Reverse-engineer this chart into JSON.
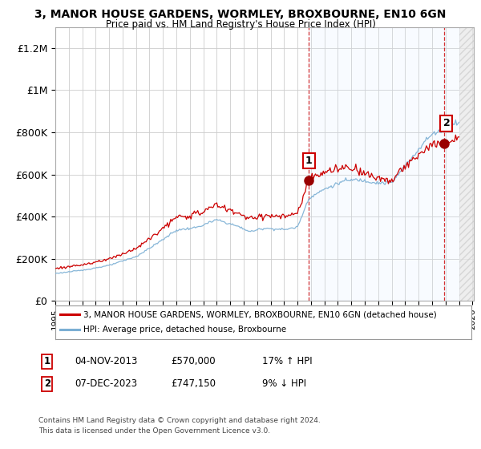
{
  "title": "3, MANOR HOUSE GARDENS, WORMLEY, BROXBOURNE, EN10 6GN",
  "subtitle": "Price paid vs. HM Land Registry's House Price Index (HPI)",
  "ylabel_ticks": [
    "£0",
    "£200K",
    "£400K",
    "£600K",
    "£800K",
    "£1M",
    "£1.2M"
  ],
  "ytick_vals": [
    0,
    200000,
    400000,
    600000,
    800000,
    1000000,
    1200000
  ],
  "ylim": [
    0,
    1300000
  ],
  "hpi_color": "#7bafd4",
  "price_color": "#cc0000",
  "sale1_date": "04-NOV-2013",
  "sale1_price": 570000,
  "sale1_year": 2013.836,
  "sale1_label": "1",
  "sale1_hpi_pct": "17% ↑ HPI",
  "sale2_date": "07-DEC-2023",
  "sale2_price": 747150,
  "sale2_year": 2023.922,
  "sale2_label": "2",
  "sale2_hpi_pct": "9% ↓ HPI",
  "legend_line1": "3, MANOR HOUSE GARDENS, WORMLEY, BROXBOURNE, EN10 6GN (detached house)",
  "legend_line2": "HPI: Average price, detached house, Broxbourne",
  "footer1": "Contains HM Land Registry data © Crown copyright and database right 2024.",
  "footer2": "This data is licensed under the Open Government Licence v3.0.",
  "background_color": "#ffffff",
  "plot_bg_color": "#ffffff",
  "grid_color": "#cccccc",
  "shade_color": "#ddeeff",
  "xlim_start": 1995.0,
  "xlim_end": 2026.1,
  "data_end": 2025.0,
  "hatch_start": 2025.0
}
